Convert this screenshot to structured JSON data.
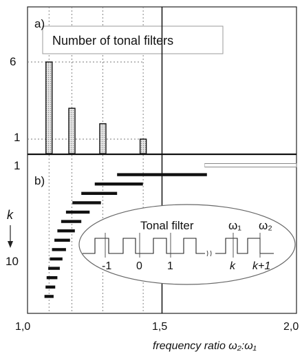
{
  "chart_data": [
    {
      "panel": "a)",
      "type": "bar",
      "title": "Number of tonal filters",
      "x": [
        1.08,
        1.165,
        1.28,
        1.43
      ],
      "values": [
        6,
        3,
        2,
        1
      ],
      "yticks": [
        "6",
        "1"
      ],
      "ytick_values": [
        6,
        1
      ],
      "xlim": [
        1.0,
        2.0
      ],
      "grid": "vertical-dotted",
      "reference_line_x": 1.5
    },
    {
      "panel": "b)",
      "type": "range-bars",
      "ylabel": "k",
      "yticks": [
        "1",
        "10"
      ],
      "ytick_values": [
        1,
        10
      ],
      "xlim": [
        1.0,
        2.0
      ],
      "xticks": [
        "1,0",
        "1,5",
        "2,0"
      ],
      "xtick_values": [
        1.0,
        1.5,
        2.0
      ],
      "xlabel": "frequency ratio ω₂:ω₁",
      "ranges": [
        {
          "k": 1,
          "from": 1.5,
          "to": 2.0
        },
        {
          "k": 2,
          "from": 1.333,
          "to": 1.667
        },
        {
          "k": 3,
          "from": 1.25,
          "to": 1.429
        },
        {
          "k": 4,
          "from": 1.2,
          "to": 1.333
        },
        {
          "k": 5,
          "from": 1.167,
          "to": 1.273
        },
        {
          "k": 6,
          "from": 1.143,
          "to": 1.231
        },
        {
          "k": 7,
          "from": 1.125,
          "to": 1.2
        },
        {
          "k": 8,
          "from": 1.111,
          "to": 1.176
        },
        {
          "k": 9,
          "from": 1.1,
          "to": 1.158
        },
        {
          "k": 10,
          "from": 1.091,
          "to": 1.143
        },
        {
          "k": 11,
          "from": 1.083,
          "to": 1.13
        },
        {
          "k": 12,
          "from": 1.077,
          "to": 1.12
        },
        {
          "k": 13,
          "from": 1.071,
          "to": 1.111
        },
        {
          "k": 14,
          "from": 1.067,
          "to": 1.103
        },
        {
          "k": 15,
          "from": 1.063,
          "to": 1.097
        }
      ],
      "inset": {
        "title": "Tonal filter",
        "tick_labels": [
          "-1",
          "0",
          "1",
          "k",
          "k+1"
        ],
        "omega1": "ω₁",
        "omega2": "ω₂"
      }
    }
  ]
}
